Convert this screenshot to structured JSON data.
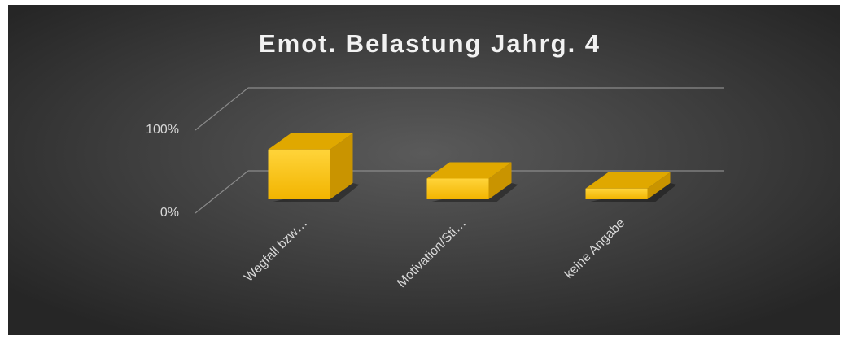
{
  "chart_data": {
    "type": "bar3d",
    "title": "Emot. Belastung Jahrg. 4",
    "categories": [
      "Wegfall bzw…",
      "Motivation/Sti…",
      "keine Angabe"
    ],
    "values": [
      60,
      25,
      13
    ],
    "color": "#ffc000",
    "ylim": [
      0,
      100
    ],
    "yticks": [
      {
        "value": 0,
        "label": "0%"
      },
      {
        "value": 100,
        "label": "100%"
      }
    ],
    "grid": true
  }
}
